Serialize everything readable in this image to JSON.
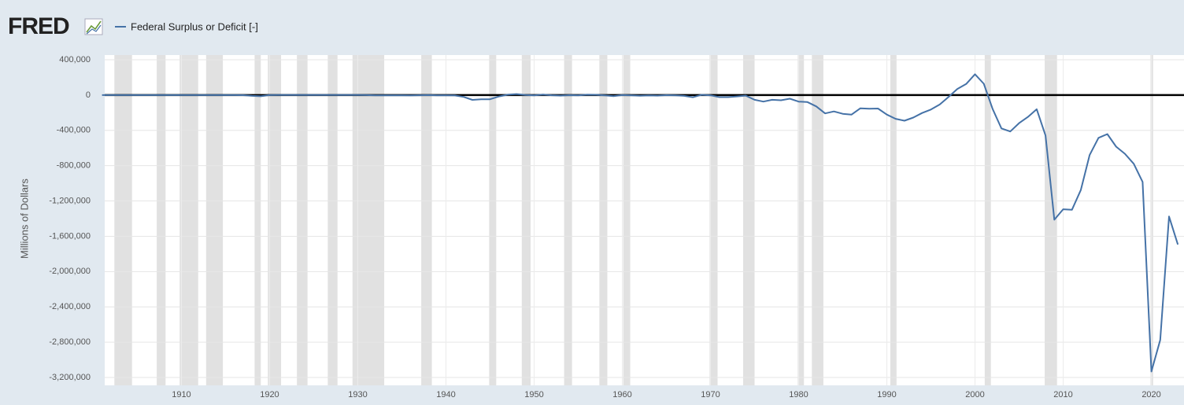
{
  "logo": "FRED",
  "chart_data": {
    "type": "line",
    "series": [
      {
        "name": "Federal Surplus or Deficit [-]",
        "color": "#4572a7",
        "values": [
          63,
          77,
          45,
          -43,
          -23,
          25,
          87,
          -57,
          -89,
          -18,
          11,
          3,
          0,
          0,
          -63,
          48,
          -853,
          -9033,
          -13363,
          291,
          509,
          736,
          713,
          963,
          717,
          865,
          1155,
          939,
          734,
          738,
          -462,
          -2735,
          -2602,
          -3586,
          -2803,
          -4304,
          -2193,
          -89,
          -2846,
          -2920,
          -4941,
          -20503,
          -54554,
          -47557,
          -47553,
          -15936,
          4018,
          11796,
          580,
          -3119,
          6102,
          -1519,
          -6493,
          -1154,
          -2993,
          3947,
          3412,
          -2769,
          -12849,
          301,
          -3335,
          -7146,
          -4756,
          -5915,
          -1411,
          -3698,
          -8643,
          -25161,
          3242,
          -2842,
          -23033,
          -23373,
          -14908,
          -6135,
          -53242,
          -73732,
          -53659,
          -59185,
          -40726,
          -73830,
          -78968,
          -127977,
          -207802,
          -185367,
          -212308,
          -221227,
          -149730,
          -155178,
          -152639,
          -221036,
          -269238,
          -290321,
          -255051,
          -203186,
          -163952,
          -107431,
          -21884,
          69270,
          125610,
          236241,
          128236,
          -157758,
          -377585,
          -412727,
          -318346,
          -248181,
          -160701,
          -458553,
          -1412688,
          -1294373,
          -1299599,
          -1076573,
          -679775,
          -484602,
          -441960,
          -584651,
          -665446,
          -779137,
          -983592,
          -3131917,
          -2775294,
          -1375905,
          -1693000
        ]
      }
    ],
    "x": [
      1901,
      1902,
      1903,
      1904,
      1905,
      1906,
      1907,
      1908,
      1909,
      1910,
      1911,
      1912,
      1913,
      1914,
      1915,
      1916,
      1917,
      1918,
      1919,
      1920,
      1921,
      1922,
      1923,
      1924,
      1925,
      1926,
      1927,
      1928,
      1929,
      1930,
      1931,
      1932,
      1933,
      1934,
      1935,
      1936,
      1937,
      1938,
      1939,
      1940,
      1941,
      1942,
      1943,
      1944,
      1945,
      1946,
      1947,
      1948,
      1949,
      1950,
      1951,
      1952,
      1953,
      1954,
      1955,
      1956,
      1957,
      1958,
      1959,
      1960,
      1961,
      1962,
      1963,
      1964,
      1965,
      1966,
      1967,
      1968,
      1969,
      1970,
      1971,
      1972,
      1973,
      1974,
      1975,
      1976,
      1977,
      1978,
      1979,
      1980,
      1981,
      1982,
      1983,
      1984,
      1985,
      1986,
      1987,
      1988,
      1989,
      1990,
      1991,
      1992,
      1993,
      1994,
      1995,
      1996,
      1997,
      1998,
      1999,
      2000,
      2001,
      2002,
      2003,
      2004,
      2005,
      2006,
      2007,
      2008,
      2009,
      2010,
      2011,
      2012,
      2013,
      2014,
      2015,
      2016,
      2017,
      2018,
      2019,
      2020,
      2021,
      2022,
      2023
    ],
    "y_label": "Millions of Dollars",
    "xlim": [
      1901.3,
      2023.7
    ],
    "ylim": [
      -3200000,
      400000
    ],
    "xticks": [
      1910,
      1920,
      1930,
      1940,
      1950,
      1960,
      1970,
      1980,
      1990,
      2000,
      2010,
      2020
    ],
    "yticks": [
      {
        "value": 400000,
        "label": "400,000"
      },
      0,
      {
        "value": -400000,
        "label": "-400,000"
      },
      {
        "value": -800000,
        "label": "-800,000"
      },
      {
        "value": -1200000,
        "label": "-1,200,000"
      },
      {
        "value": -1600000,
        "label": "-1,600,000"
      },
      {
        "value": -2000000,
        "label": "-2,000,000"
      },
      {
        "value": -2400000,
        "label": "-2,400,000"
      },
      {
        "value": -2800000,
        "label": "-2,800,000"
      },
      {
        "value": -3200000,
        "label": "-3,200,000"
      }
    ],
    "grid": true,
    "recessions": [
      [
        1902.4,
        1904.4
      ],
      [
        1907.2,
        1908.2
      ],
      [
        1909.8,
        1911.9
      ],
      [
        1912.8,
        1914.7
      ],
      [
        1918.3,
        1919.0
      ],
      [
        1919.8,
        1921.3
      ],
      [
        1923.1,
        1924.3
      ],
      [
        1926.6,
        1927.7
      ],
      [
        1929.4,
        1933.0
      ],
      [
        1937.2,
        1938.4
      ],
      [
        1944.9,
        1945.7
      ],
      [
        1948.6,
        1949.6
      ],
      [
        1953.4,
        1954.3
      ],
      [
        1957.4,
        1958.3
      ],
      [
        1960.1,
        1960.9
      ],
      [
        1969.9,
        1970.8
      ],
      [
        1973.7,
        1975.0
      ],
      [
        1979.9,
        1980.6
      ],
      [
        1981.5,
        1982.8
      ],
      [
        1990.4,
        1991.1
      ],
      [
        2001.1,
        2001.8
      ],
      [
        2007.9,
        2009.3
      ],
      [
        2019.9,
        2020.2
      ]
    ]
  }
}
